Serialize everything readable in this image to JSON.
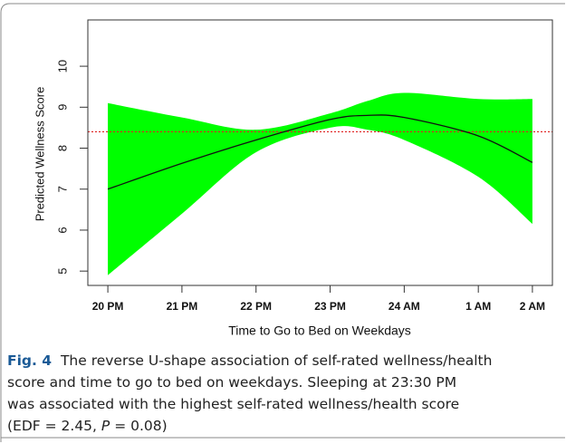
{
  "chart_data": {
    "type": "band-line",
    "ylabel": "Predicted Wellness Score",
    "xlabel": "Time to Go to Bed on Weekdays",
    "xlim": [
      19.73,
      26.0
    ],
    "ylim": [
      4.65,
      11.13
    ],
    "xticks": [
      {
        "value": 20,
        "label": "20 PM"
      },
      {
        "value": 21,
        "label": "21 PM"
      },
      {
        "value": 22,
        "label": "22 PM"
      },
      {
        "value": 23,
        "label": "23 PM"
      },
      {
        "value": 24,
        "label": "24 AM"
      },
      {
        "value": 25,
        "label": "1 AM"
      },
      {
        "value": 25.73,
        "label": "2 AM"
      }
    ],
    "yticks": [
      5,
      6,
      7,
      8,
      9,
      10
    ],
    "x": [
      20,
      21,
      22,
      23,
      23.5,
      24,
      25,
      25.73
    ],
    "series": [
      {
        "color": "#00ff00",
        "upper": [
          9.1,
          8.75,
          8.45,
          8.85,
          9.15,
          9.35,
          9.2,
          9.2
        ],
        "lower": [
          4.9,
          6.4,
          7.9,
          8.5,
          8.45,
          8.2,
          7.3,
          6.15
        ]
      },
      {
        "color": "#111111",
        "values": [
          7.0,
          7.63,
          8.2,
          8.7,
          8.8,
          8.75,
          8.3,
          7.65
        ]
      }
    ],
    "reference_line": {
      "value": 8.4,
      "color": "#e02020"
    }
  },
  "caption": {
    "label": "Fig. 4",
    "lines": [
      "The reverse U-shape association of self-rated wellness/health",
      "score and time to go to bed on weekdays. Sleeping at 23:30 PM",
      "was associated with the highest self-rated wellness/health score",
      "(EDF = 2.45, "
    ],
    "p": "P",
    "tail": " = 0.08)"
  }
}
